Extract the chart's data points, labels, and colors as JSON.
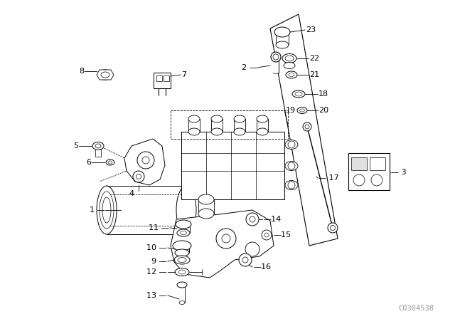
{
  "background_color": "#ffffff",
  "figure_width": 6.4,
  "figure_height": 4.48,
  "dpi": 100,
  "watermark": "C0304538",
  "watermark_color": "#999999",
  "watermark_fontsize": 7.5
}
